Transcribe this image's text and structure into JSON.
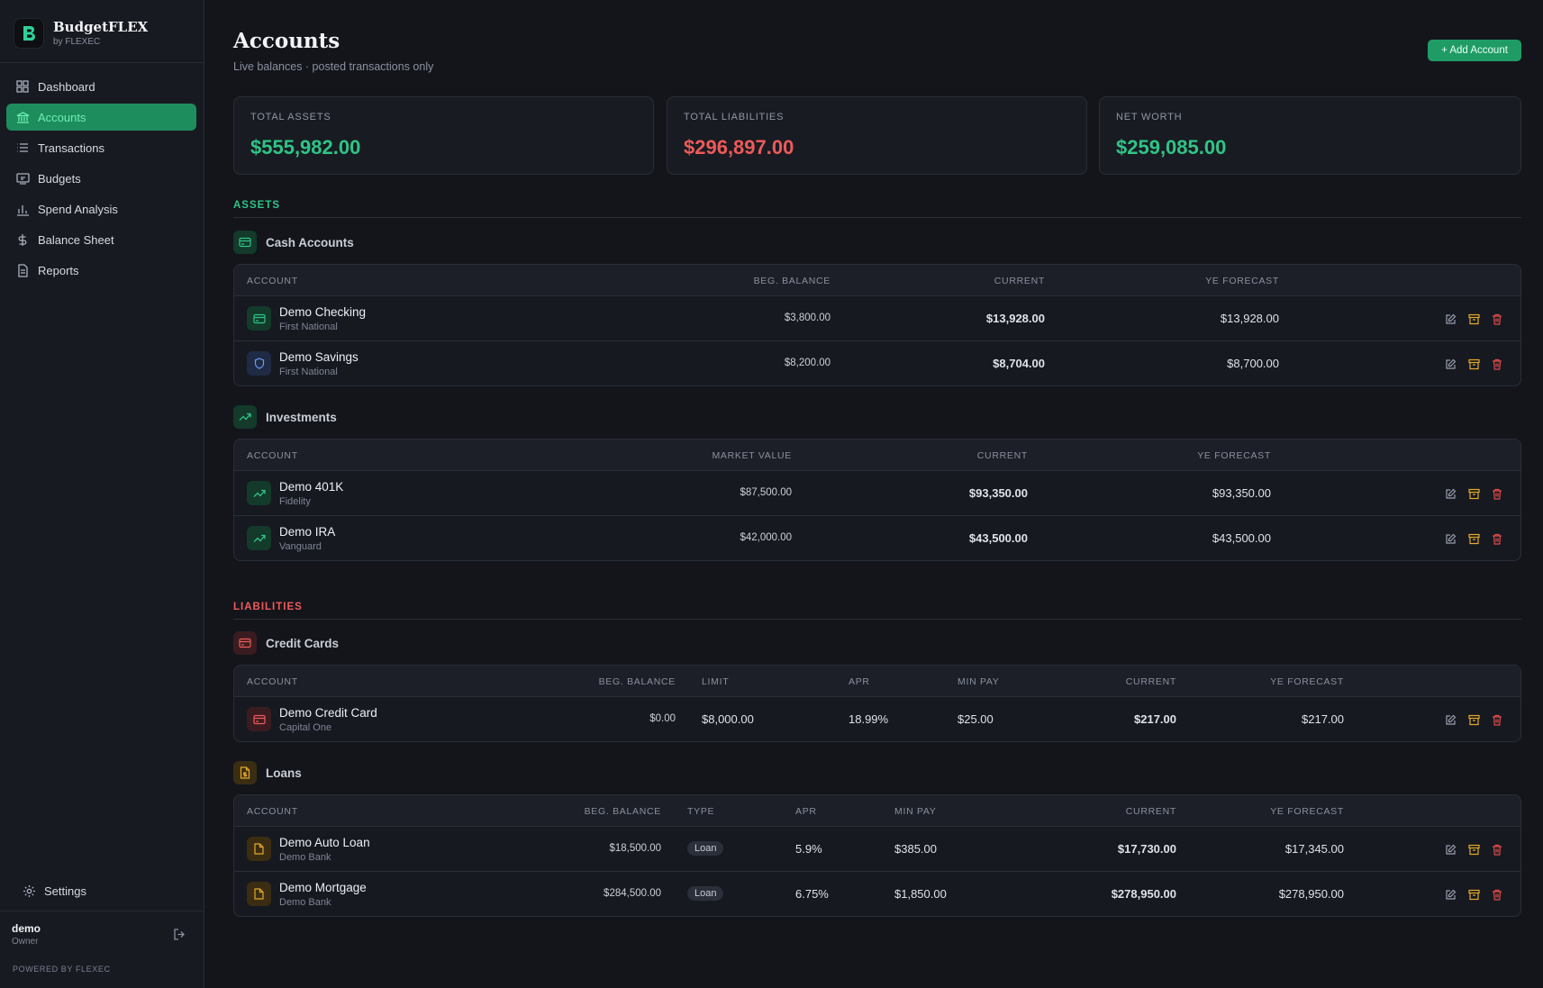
{
  "brand": {
    "name": "BudgetFLEX",
    "sub": "by FLEXEC"
  },
  "nav": [
    {
      "label": "Dashboard",
      "icon": "grid-icon"
    },
    {
      "label": "Accounts",
      "icon": "bank-icon",
      "active": true
    },
    {
      "label": "Transactions",
      "icon": "list-icon"
    },
    {
      "label": "Budgets",
      "icon": "budget-icon"
    },
    {
      "label": "Spend Analysis",
      "icon": "bar-chart-icon"
    },
    {
      "label": "Balance Sheet",
      "icon": "dollar-icon"
    },
    {
      "label": "Reports",
      "icon": "document-icon"
    }
  ],
  "settings_label": "Settings",
  "user": {
    "name": "demo",
    "role": "Owner"
  },
  "powered": "POWERED BY FLEXEC",
  "page": {
    "title": "Accounts",
    "subtitle": "Live balances · posted transactions only",
    "add_label": "+ Add Account"
  },
  "stats": {
    "assets": {
      "label": "TOTAL ASSETS",
      "value": "$555,982.00"
    },
    "liabilities": {
      "label": "TOTAL LIABILITIES",
      "value": "$296,897.00"
    },
    "net": {
      "label": "NET WORTH",
      "value": "$259,085.00"
    }
  },
  "assets": {
    "title": "ASSETS",
    "cash": {
      "name": "Cash Accounts",
      "headers": {
        "account": "ACCOUNT",
        "beg": "BEG. BALANCE",
        "current": "CURRENT",
        "ye": "YE FORECAST"
      },
      "rows": [
        {
          "name": "Demo Checking",
          "inst": "First National",
          "beg": "$3,800.00",
          "current": "$13,928.00",
          "ye": "$13,928.00"
        },
        {
          "name": "Demo Savings",
          "inst": "First National",
          "beg": "$8,200.00",
          "current": "$8,704.00",
          "ye": "$8,700.00"
        }
      ]
    },
    "investments": {
      "name": "Investments",
      "headers": {
        "account": "ACCOUNT",
        "mv": "MARKET VALUE",
        "current": "CURRENT",
        "ye": "YE FORECAST"
      },
      "rows": [
        {
          "name": "Demo 401K",
          "inst": "Fidelity",
          "mv": "$87,500.00",
          "current": "$93,350.00",
          "ye": "$93,350.00"
        },
        {
          "name": "Demo IRA",
          "inst": "Vanguard",
          "mv": "$42,000.00",
          "current": "$43,500.00",
          "ye": "$43,500.00"
        }
      ]
    }
  },
  "liabilities": {
    "title": "LIABILITIES",
    "cards": {
      "name": "Credit Cards",
      "headers": {
        "account": "ACCOUNT",
        "beg": "BEG. BALANCE",
        "limit": "LIMIT",
        "apr": "APR",
        "min": "MIN PAY",
        "current": "CURRENT",
        "ye": "YE FORECAST"
      },
      "rows": [
        {
          "name": "Demo Credit Card",
          "inst": "Capital One",
          "beg": "$0.00",
          "limit": "$8,000.00",
          "apr": "18.99%",
          "min": "$25.00",
          "current": "$217.00",
          "ye": "$217.00"
        }
      ]
    },
    "loans": {
      "name": "Loans",
      "headers": {
        "account": "ACCOUNT",
        "beg": "BEG. BALANCE",
        "type": "TYPE",
        "apr": "APR",
        "min": "MIN PAY",
        "current": "CURRENT",
        "ye": "YE FORECAST"
      },
      "rows": [
        {
          "name": "Demo Auto Loan",
          "inst": "Demo Bank",
          "beg": "$18,500.00",
          "type": "Loan",
          "apr": "5.9%",
          "min": "$385.00",
          "current": "$17,730.00",
          "ye": "$17,345.00"
        },
        {
          "name": "Demo Mortgage",
          "inst": "Demo Bank",
          "beg": "$284,500.00",
          "type": "Loan",
          "apr": "6.75%",
          "min": "$1,850.00",
          "current": "$278,950.00",
          "ye": "$278,950.00"
        }
      ]
    }
  },
  "colors": {
    "accent": "#1f9c66",
    "asset": "#2fc486",
    "liability": "#ef5a5a",
    "edit": "#9aa0ae",
    "archive": "#e6a92b",
    "delete": "#e24b4b"
  }
}
